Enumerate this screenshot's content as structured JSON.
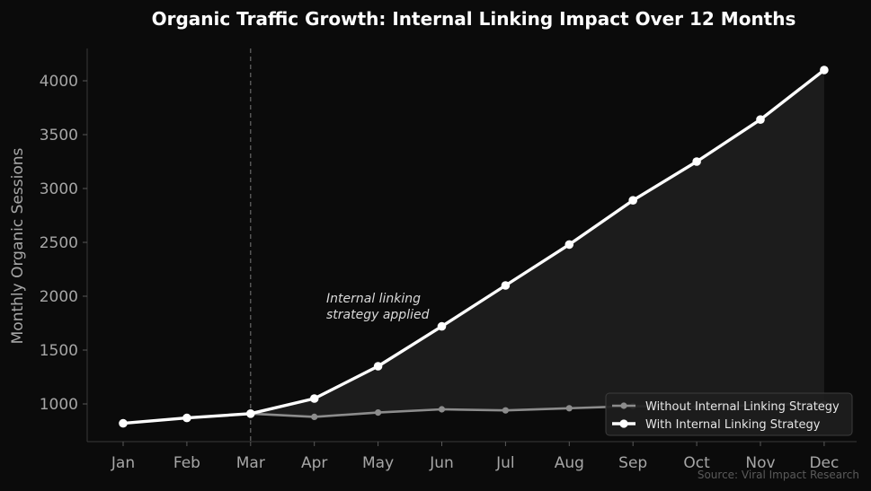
{
  "chart_data": {
    "type": "line",
    "title": "Organic Traffic Growth: Internal Linking Impact Over 12 Months",
    "xlabel": "",
    "ylabel": "Monthly Organic Sessions",
    "categories": [
      "Jan",
      "Feb",
      "Mar",
      "Apr",
      "May",
      "Jun",
      "Jul",
      "Aug",
      "Sep",
      "Oct",
      "Nov",
      "Dec"
    ],
    "yticks": [
      "1000",
      "1500",
      "2000",
      "2500",
      "3000",
      "3500",
      "4000"
    ],
    "ylim": [
      650,
      4300
    ],
    "grid": false,
    "legend_position": "bottom-right",
    "series": [
      {
        "name": "Without Internal Linking Strategy",
        "color": "#8c8c8c",
        "values": [
          820,
          870,
          910,
          880,
          920,
          950,
          940,
          960,
          980,
          970,
          990,
          1000
        ]
      },
      {
        "name": "With Internal Linking Strategy",
        "color": "#ffffff",
        "values": [
          820,
          870,
          910,
          1050,
          1350,
          1720,
          2100,
          2480,
          2890,
          3250,
          3640,
          4100
        ]
      }
    ],
    "annotation": {
      "lines": [
        "Internal linking",
        "strategy applied"
      ],
      "marker_category": "Mar"
    },
    "source": "Source: Viral Impact Research"
  }
}
